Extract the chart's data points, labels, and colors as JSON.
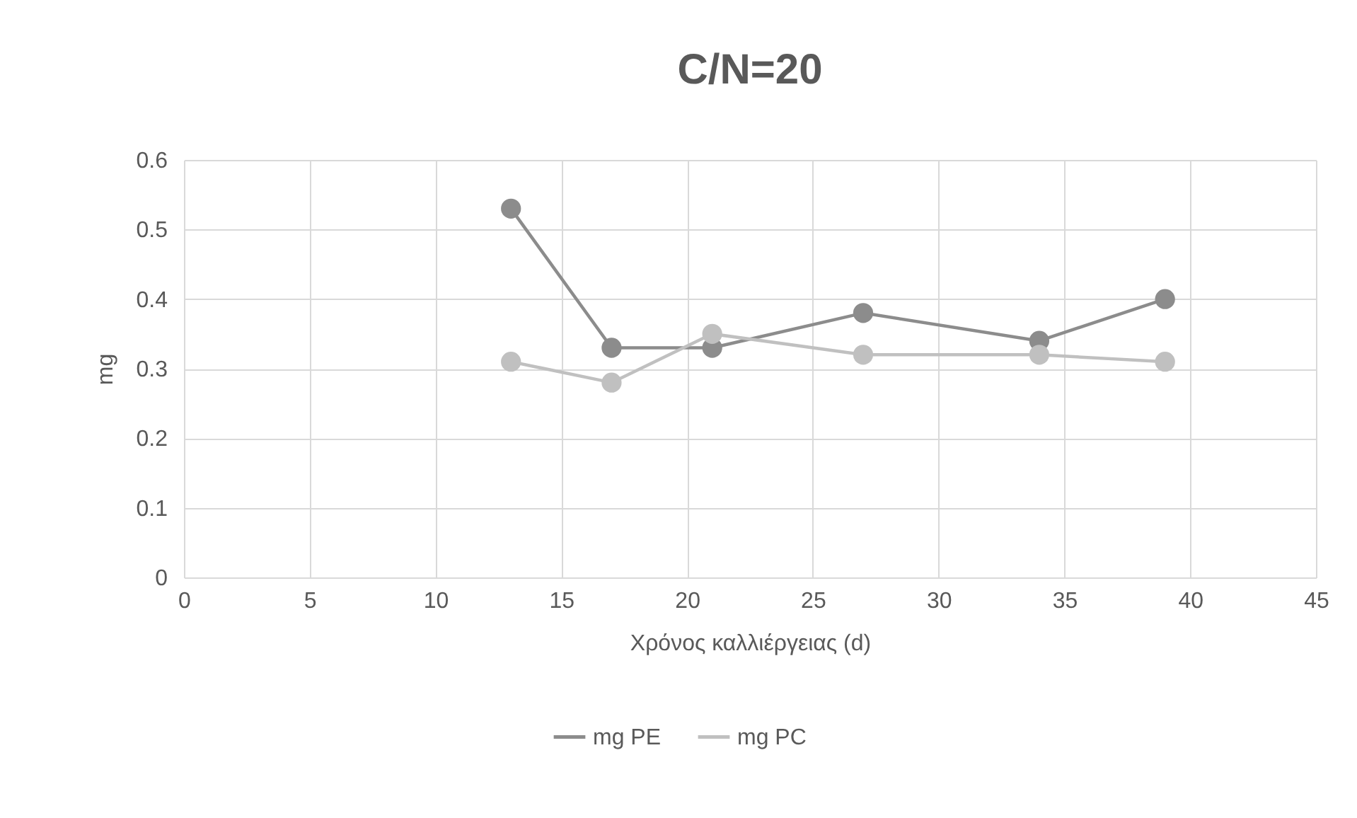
{
  "chart_data": {
    "type": "line",
    "title": "C/N=20",
    "xlabel": "Χρόνος καλλιέργειας (d)",
    "ylabel": "mg",
    "x": [
      13,
      17,
      21,
      27,
      34,
      39
    ],
    "series": [
      {
        "name": "mg PE",
        "color": "#8c8c8c",
        "values": [
          0.53,
          0.33,
          0.33,
          0.38,
          0.34,
          0.4
        ]
      },
      {
        "name": "mg PC",
        "color": "#c0c0c0",
        "values": [
          0.31,
          0.28,
          0.35,
          0.32,
          0.32,
          0.31
        ]
      }
    ],
    "xlim": [
      0,
      45
    ],
    "xticks": [
      0,
      5,
      10,
      15,
      20,
      25,
      30,
      35,
      40,
      45
    ],
    "ylim": [
      0,
      0.6
    ],
    "yticks": [
      0,
      0.1,
      0.2,
      0.3,
      0.4,
      0.5,
      0.6
    ],
    "grid": true,
    "legend": "bottom",
    "marker": "circle",
    "line_style": "solid"
  }
}
